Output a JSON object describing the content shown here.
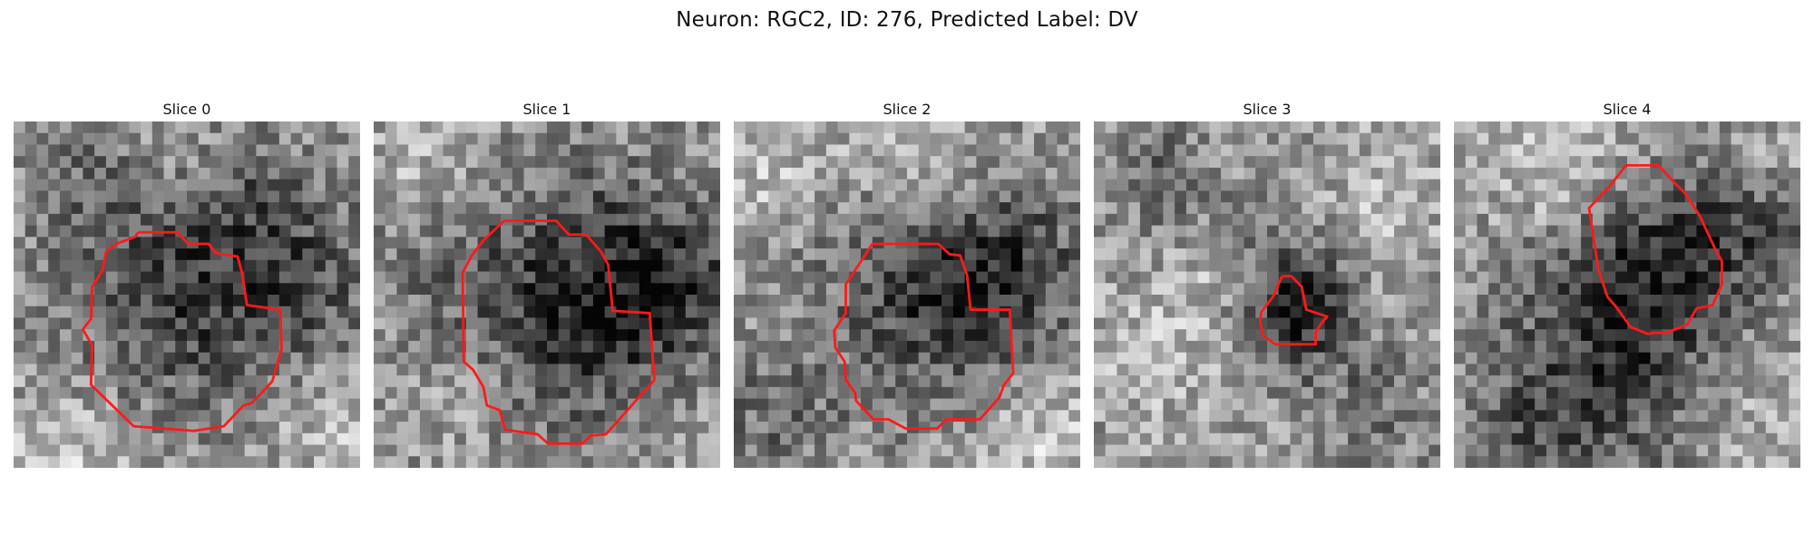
{
  "figure": {
    "title": "Neuron: RGC2, ID: 276, Predicted Label: DV"
  },
  "panels": [
    {
      "title": "Slice 0"
    },
    {
      "title": "Slice 1"
    },
    {
      "title": "Slice 2"
    },
    {
      "title": "Slice 3"
    },
    {
      "title": "Slice 4"
    }
  ],
  "colors": {
    "contour": "#ff1a1a",
    "background": "#ffffff"
  }
}
